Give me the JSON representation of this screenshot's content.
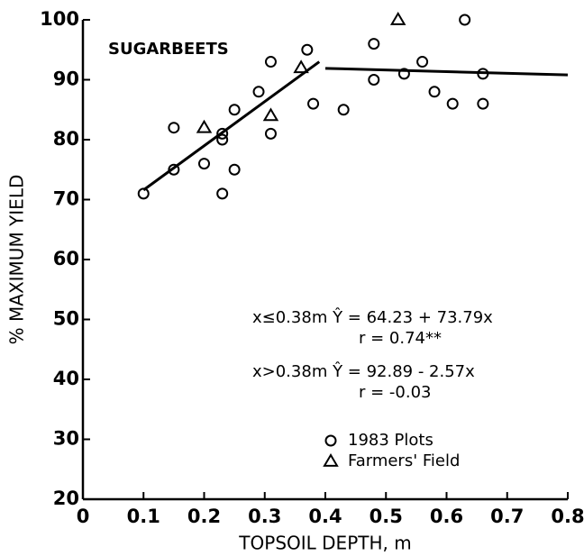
{
  "chart_data": {
    "type": "scatter",
    "xlabel": "TOPSOIL DEPTH, m",
    "ylabel": "% MAXIMUM YIELD",
    "xlim": [
      0,
      0.8
    ],
    "ylim": [
      20,
      100
    ],
    "xticks": [
      0,
      0.1,
      0.2,
      0.3,
      0.4,
      0.5,
      0.6,
      0.7,
      0.8
    ],
    "yticks": [
      20,
      30,
      40,
      50,
      60,
      70,
      80,
      90,
      100
    ],
    "series": [
      {
        "name": "1983 Plots",
        "marker": "circle",
        "color": "#000000",
        "x": [
          0.1,
          0.15,
          0.15,
          0.2,
          0.23,
          0.23,
          0.23,
          0.25,
          0.25,
          0.29,
          0.31,
          0.31,
          0.37,
          0.38,
          0.43,
          0.48,
          0.48,
          0.53,
          0.56,
          0.58,
          0.61,
          0.63,
          0.66,
          0.66
        ],
        "values": [
          71,
          82,
          75,
          76,
          81,
          80,
          71,
          75,
          85,
          88,
          93,
          81,
          95,
          86,
          85,
          96,
          90,
          91,
          93,
          88,
          86,
          100,
          91,
          86
        ]
      },
      {
        "name": "Farmers' Field",
        "marker": "triangle",
        "color": "#000000",
        "x": [
          0.2,
          0.31,
          0.36,
          0.52
        ],
        "values": [
          82,
          84,
          92,
          100
        ]
      }
    ],
    "fit_lines": [
      {
        "x": [
          0.1,
          0.39
        ],
        "values": [
          71.6,
          93.0
        ]
      },
      {
        "x": [
          0.4,
          0.8
        ],
        "values": [
          91.9,
          90.8
        ]
      }
    ],
    "annotations": [
      "SUGARBEETS",
      "x≤0.38m  Ŷ = 64.23 + 73.79x",
      "r = 0.74**",
      "x>0.38m  Ŷ = 92.89 - 2.57x",
      "r = -0.03"
    ]
  }
}
